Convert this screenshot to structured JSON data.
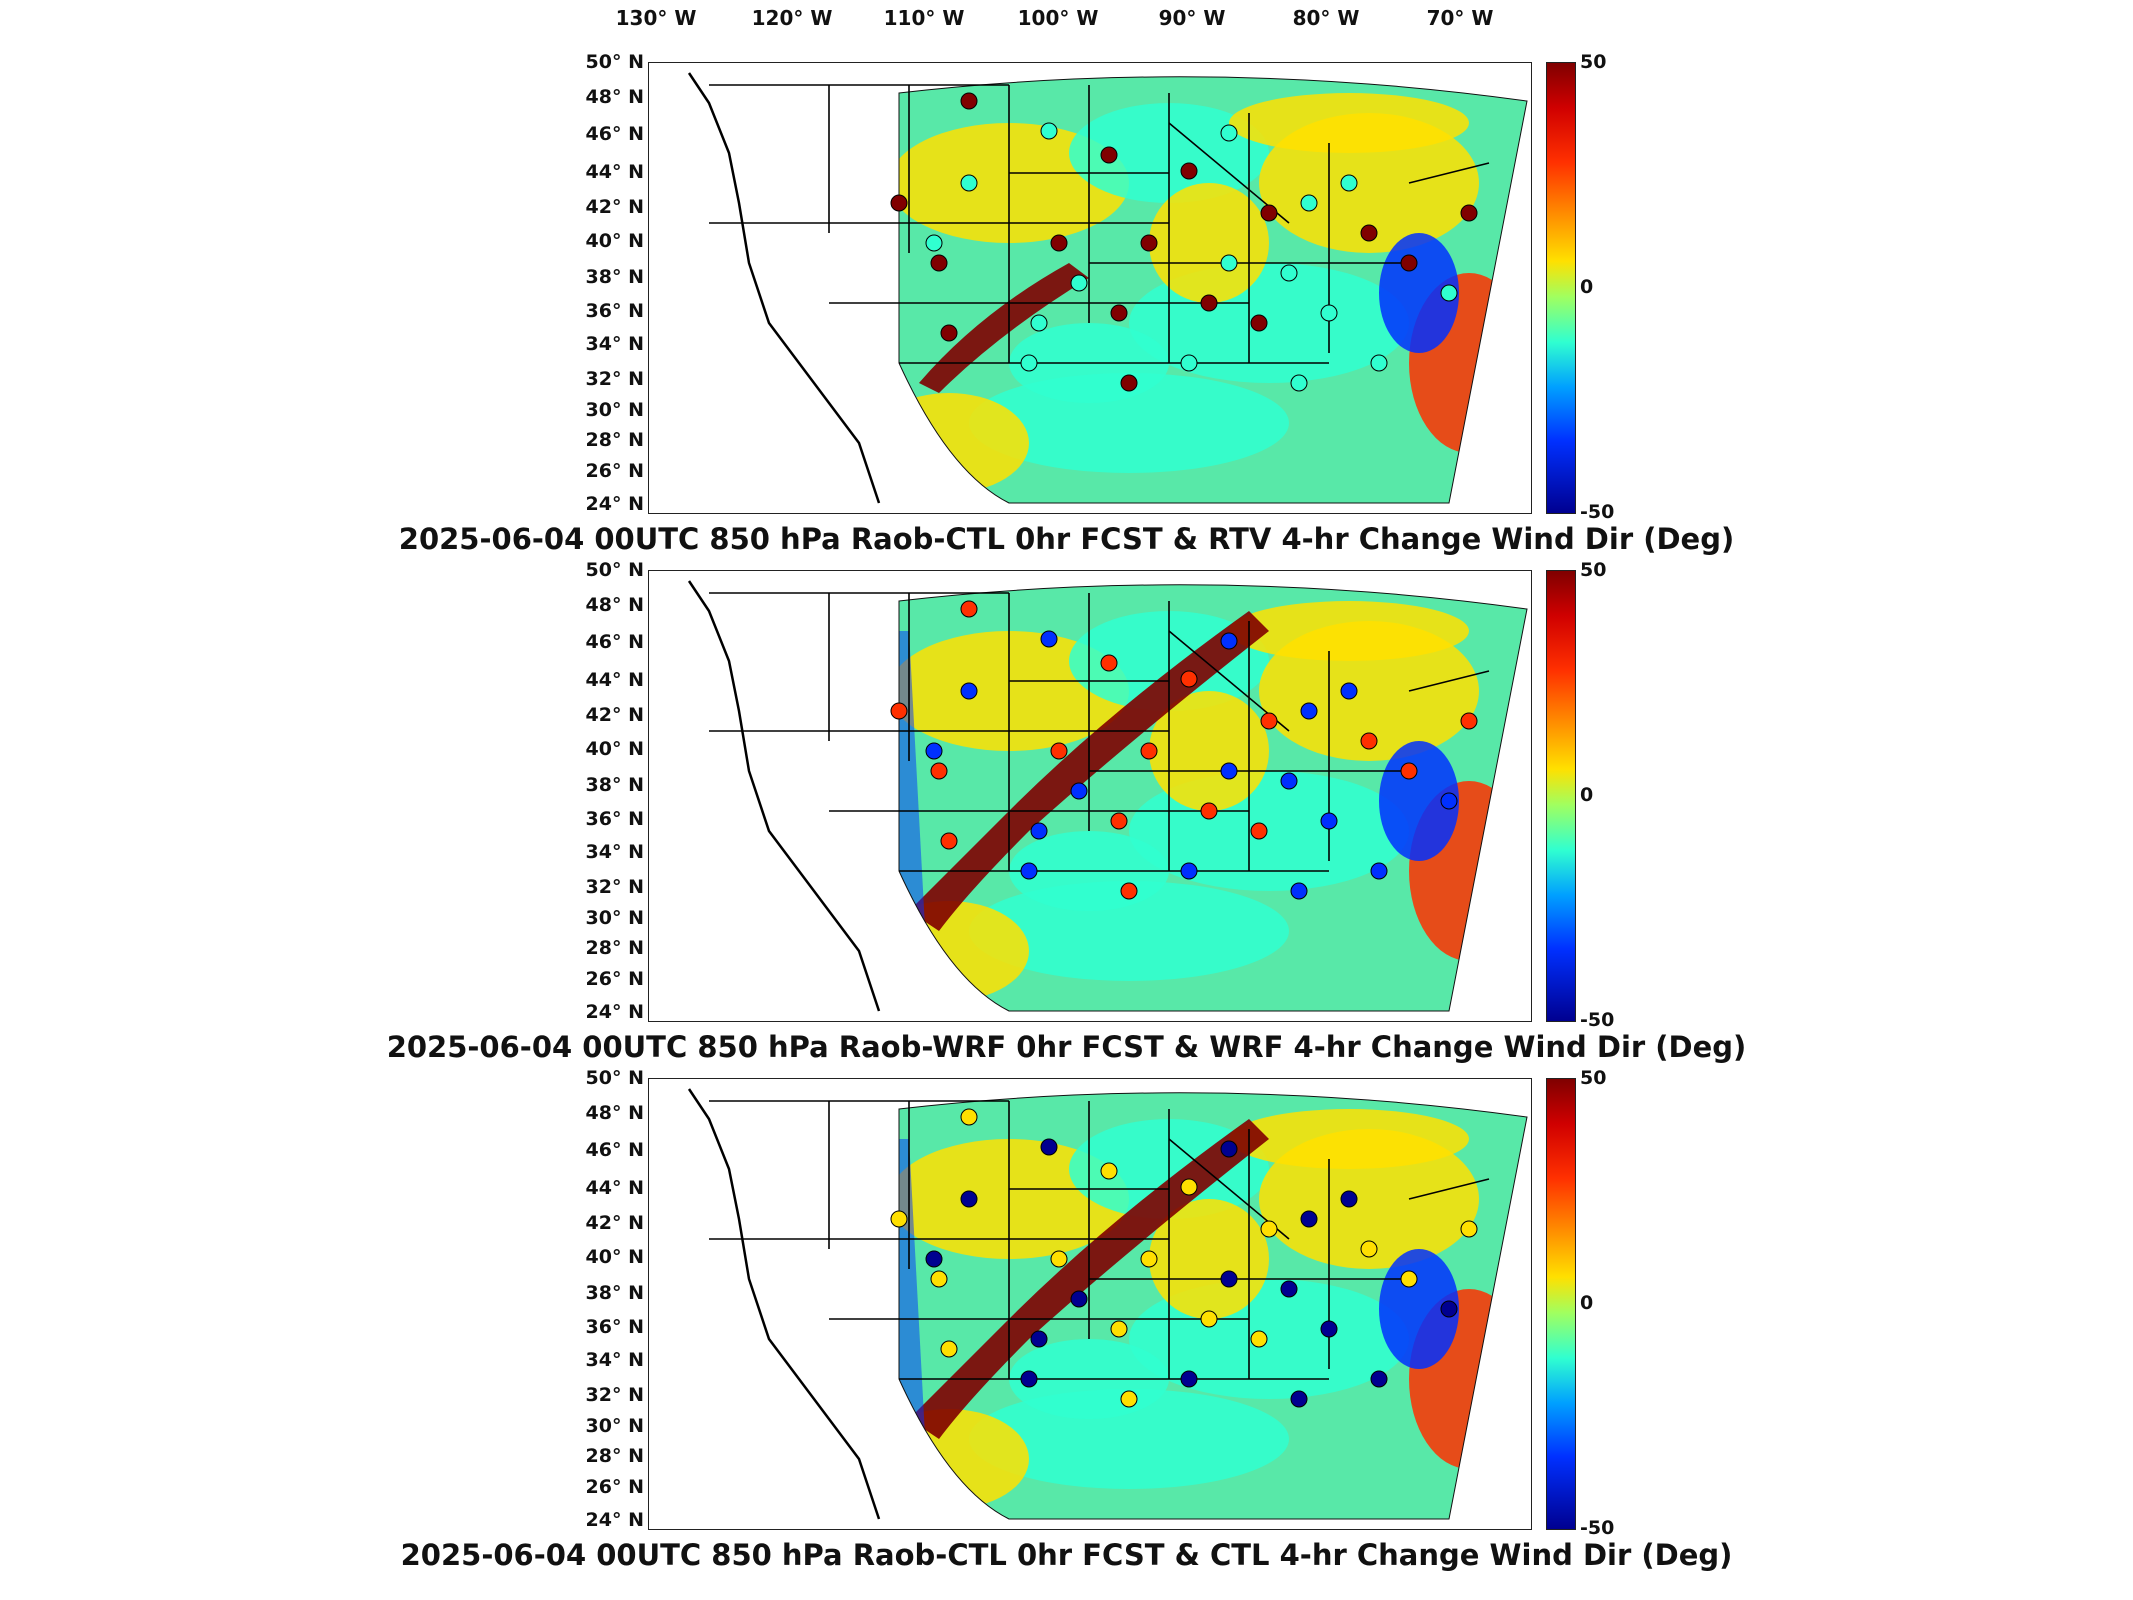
{
  "lon_labels": [
    "130° W",
    "120° W",
    "110° W",
    "100° W",
    "90° W",
    "80° W",
    "70° W"
  ],
  "lat_labels": [
    "50° N",
    "48° N",
    "46° N",
    "44° N",
    "42° N",
    "40° N",
    "38° N",
    "36° N",
    "34° N",
    "32° N",
    "30° N",
    "28° N",
    "26° N",
    "24° N"
  ],
  "colorbar": {
    "max_label": "50",
    "mid_label": "0",
    "min_label": "-50",
    "colors": [
      "#800000",
      "#ff3000",
      "#ffe000",
      "#30ffd0",
      "#0030ff",
      "#000090"
    ]
  },
  "panels": [
    {
      "title": "2025-06-04 00UTC 850 hPa Raob-CTL 0hr FCST & RTV 4-hr Change Wind Dir (Deg)"
    },
    {
      "title": "2025-06-04 00UTC 850 hPa Raob-WRF 0hr FCST & WRF 4-hr Change Wind Dir (Deg)"
    },
    {
      "title": "2025-06-04 00UTC 850 hPa Raob-CTL 0hr FCST & CTL 4-hr Change Wind Dir (Deg)"
    }
  ]
}
